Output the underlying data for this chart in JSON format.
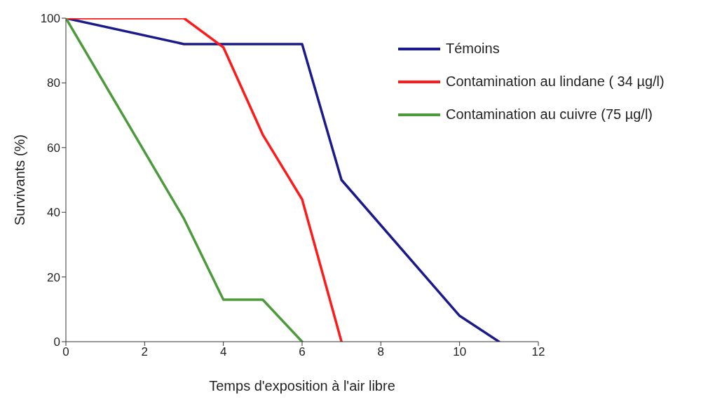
{
  "chart_data": {
    "type": "line",
    "xlabel": "Temps d'exposition à l'air libre",
    "ylabel": "Survivants (%)",
    "xlim": [
      0,
      12
    ],
    "xticks": [
      0,
      2,
      4,
      6,
      8,
      10,
      12
    ],
    "ylim": [
      0,
      100
    ],
    "yticks": [
      0,
      20,
      40,
      60,
      80,
      100
    ],
    "grid": false,
    "legend": "top right",
    "marker": "none",
    "line_style": "solid",
    "series": [
      {
        "name": "Témoins",
        "color": "#1a1a8c",
        "x": [
          0,
          3,
          6,
          7,
          10,
          11
        ],
        "values": [
          100,
          92,
          92,
          50,
          8,
          0
        ]
      },
      {
        "name": "Contamination au lindane ( 34 µg/l)",
        "color": "#ff1a1a",
        "x": [
          0,
          3,
          4,
          5,
          6,
          7
        ],
        "values": [
          100,
          100,
          91,
          64,
          44,
          0
        ]
      },
      {
        "name": "Contamination au cuivre (75 µg/l)",
        "color": "#4c9a3c",
        "x": [
          0,
          3,
          4,
          5,
          6
        ],
        "values": [
          100,
          38,
          13,
          13,
          0
        ]
      }
    ]
  }
}
